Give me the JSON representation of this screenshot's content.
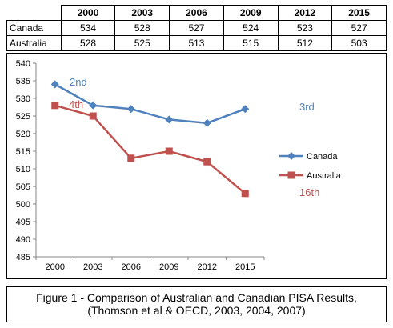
{
  "table": {
    "headers": [
      "2000",
      "2003",
      "2006",
      "2009",
      "2012",
      "2015"
    ],
    "rows": [
      {
        "label": "Canada",
        "values": [
          "534",
          "528",
          "527",
          "524",
          "523",
          "527"
        ]
      },
      {
        "label": "Australia",
        "values": [
          "528",
          "525",
          "513",
          "515",
          "512",
          "503"
        ]
      }
    ]
  },
  "chart_data": {
    "type": "line",
    "x": [
      "2000",
      "2003",
      "2006",
      "2009",
      "2012",
      "2015"
    ],
    "ylim": [
      485,
      540
    ],
    "yticks": [
      485,
      490,
      495,
      500,
      505,
      510,
      515,
      520,
      525,
      530,
      535,
      540
    ],
    "grid": false,
    "legend_position": "right",
    "series": [
      {
        "name": "Canada",
        "values": [
          534,
          528,
          527,
          524,
          523,
          527
        ],
        "color": "#4F81BD",
        "marker": "diamond"
      },
      {
        "name": "Australia",
        "values": [
          528,
          525,
          513,
          515,
          512,
          503
        ],
        "color": "#C0504D",
        "marker": "square"
      }
    ],
    "annotations": [
      {
        "text": "2nd",
        "color": "#4F81BD"
      },
      {
        "text": "4th",
        "color": "#C0504D"
      },
      {
        "text": "3rd",
        "color": "#4F81BD"
      },
      {
        "text": "16th",
        "color": "#C0504D"
      }
    ]
  },
  "caption": {
    "line1": "Figure 1 - Comparison of Australian and Canadian PISA Results,",
    "line2": "(Thomson et al & OECD, 2003, 2004, 2007)"
  }
}
